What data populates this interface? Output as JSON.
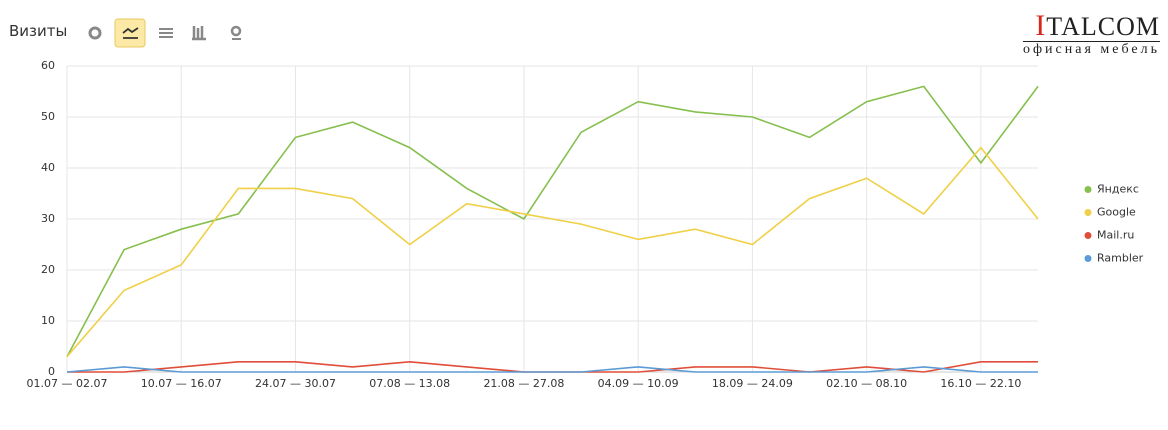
{
  "header": {
    "title": "Визиты",
    "logo_name": "ITALCOM",
    "logo_tagline": "офисная мебель"
  },
  "chart_data": {
    "type": "line",
    "categories": [
      "01.07 — 02.07",
      null,
      "10.07 — 16.07",
      null,
      "24.07 — 30.07",
      null,
      "07.08 — 13.08",
      null,
      "21.08 — 27.08",
      null,
      "04.09 — 10.09",
      null,
      "18.09 — 24.09",
      null,
      "02.10 — 08.10",
      null,
      "16.10 — 22.10",
      null
    ],
    "series": [
      {
        "name": "Яндекс",
        "color": "#86bf4e",
        "values": [
          3,
          24,
          28,
          31,
          46,
          49,
          44,
          36,
          30,
          47,
          53,
          51,
          50,
          46,
          53,
          56,
          41,
          56
        ]
      },
      {
        "name": "Google",
        "color": "#efd047",
        "values": [
          3,
          16,
          21,
          36,
          36,
          34,
          25,
          33,
          31,
          29,
          26,
          28,
          25,
          34,
          38,
          31,
          44,
          30
        ]
      },
      {
        "name": "Mail.ru",
        "color": "#e04e39",
        "values": [
          0,
          0,
          1,
          2,
          2,
          1,
          2,
          1,
          0,
          0,
          0,
          1,
          1,
          0,
          1,
          0,
          2,
          2
        ]
      },
      {
        "name": "Rambler",
        "color": "#5b9bd5",
        "values": [
          0,
          1,
          0,
          0,
          0,
          0,
          0,
          0,
          0,
          0,
          1,
          0,
          0,
          0,
          0,
          1,
          0,
          0
        ]
      }
    ],
    "ylim": [
      0,
      60
    ],
    "yticks": [
      0,
      10,
      20,
      30,
      40,
      50,
      60
    ],
    "grid": true,
    "legend": "right"
  }
}
